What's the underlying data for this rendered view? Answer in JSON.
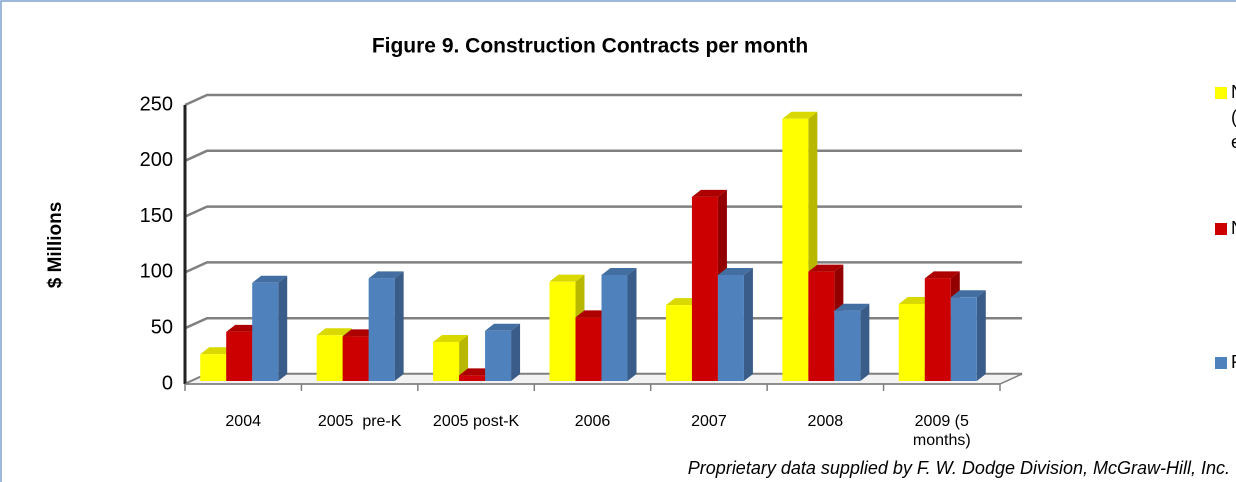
{
  "chart_data": {
    "type": "bar3d",
    "title": "Figure 9. Construction Contracts per month",
    "y_label": "$ Millions",
    "footnote": "Proprietary data supplied by F. W. Dodge Division, McGraw-Hill, Inc.",
    "categories": [
      "2004",
      "2005  pre-K",
      "2005 post-K",
      "2006",
      "2007",
      "2008",
      "2009 (5 months)"
    ],
    "series": [
      {
        "name": "Non-building (roads, bridges, etc.)",
        "color": "#ffff00",
        "values": [
          24,
          41,
          35,
          89,
          68,
          235,
          69
        ]
      },
      {
        "name": "Non-residential",
        "color": "#cc0000",
        "values": [
          44,
          40,
          5,
          57,
          165,
          98,
          92
        ]
      },
      {
        "name": "Residential",
        "color": "#4f81bd",
        "values": [
          88,
          92,
          45,
          95,
          95,
          63,
          75
        ]
      }
    ],
    "ylim": [
      0,
      250
    ],
    "yticks": [
      0,
      50,
      100,
      150,
      200,
      250
    ],
    "grid": true,
    "legend": "right"
  }
}
